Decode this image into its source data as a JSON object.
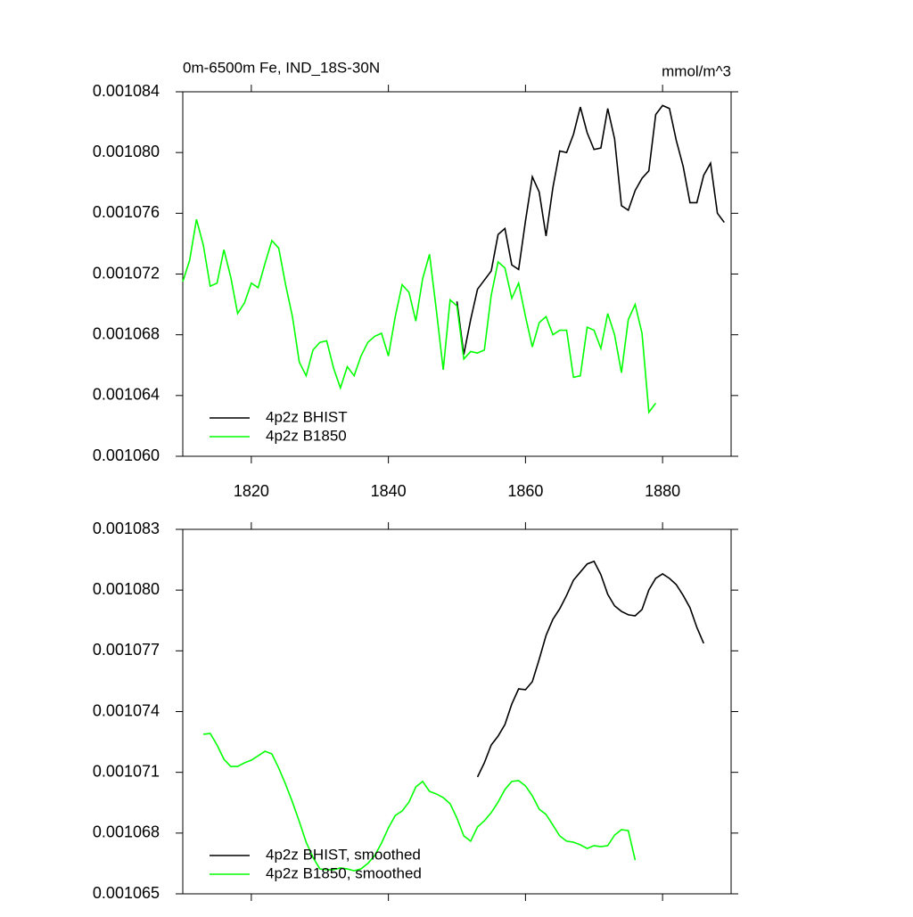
{
  "chart_data": [
    {
      "type": "line",
      "title": "0m-6500m Fe, IND_18S-30N",
      "right_title": "mmol/m^3",
      "xlim": [
        1810,
        1890
      ],
      "xticks": [
        1820,
        1840,
        1860,
        1880
      ],
      "ylim": [
        0.00106,
        0.001084
      ],
      "yticks": [
        {
          "value": 0.00106,
          "label": "0.001060"
        },
        0.001064,
        0.001068,
        0.001072,
        0.001076,
        {
          "value": 0.00108,
          "label": "0.001080"
        },
        0.001084
      ],
      "legend": "lower left",
      "series": [
        {
          "name": "4p2z BHIST",
          "color": "#000000",
          "x": [
            1850,
            1851,
            1852,
            1853,
            1854,
            1855,
            1856,
            1857,
            1858,
            1859,
            1860,
            1861,
            1862,
            1863,
            1864,
            1865,
            1866,
            1867,
            1868,
            1869,
            1870,
            1871,
            1872,
            1873,
            1874,
            1875,
            1876,
            1877,
            1878,
            1879,
            1880,
            1881,
            1882,
            1883,
            1884,
            1885,
            1886,
            1887,
            1888,
            1889
          ],
          "values": [
            0.0010702,
            0.0010667,
            0.001069,
            0.001071,
            0.0010716,
            0.0010722,
            0.0010746,
            0.001075,
            0.0010726,
            0.0010723,
            0.0010755,
            0.0010784,
            0.0010774,
            0.0010745,
            0.0010777,
            0.0010801,
            0.00108,
            0.0010812,
            0.001083,
            0.0010813,
            0.0010802,
            0.0010803,
            0.0010829,
            0.0010809,
            0.0010765,
            0.0010762,
            0.0010775,
            0.0010783,
            0.0010788,
            0.0010825,
            0.0010831,
            0.0010829,
            0.0010808,
            0.0010791,
            0.0010767,
            0.0010767,
            0.0010785,
            0.0010793,
            0.001076,
            0.0010754
          ]
        },
        {
          "name": "4p2z B1850",
          "color": "#00ff00",
          "x": [
            1810,
            1811,
            1812,
            1813,
            1814,
            1815,
            1816,
            1817,
            1818,
            1819,
            1820,
            1821,
            1822,
            1823,
            1824,
            1825,
            1826,
            1827,
            1828,
            1829,
            1830,
            1831,
            1832,
            1833,
            1834,
            1835,
            1836,
            1837,
            1838,
            1839,
            1840,
            1841,
            1842,
            1843,
            1844,
            1845,
            1846,
            1847,
            1848,
            1849,
            1850,
            1851,
            1852,
            1853,
            1854,
            1855,
            1856,
            1857,
            1858,
            1859,
            1860,
            1861,
            1862,
            1863,
            1864,
            1865,
            1866,
            1867,
            1868,
            1869,
            1870,
            1871,
            1872,
            1873,
            1874,
            1875,
            1876,
            1877,
            1878,
            1879
          ],
          "values": [
            0.0010715,
            0.0010729,
            0.0010756,
            0.0010739,
            0.0010712,
            0.0010714,
            0.0010736,
            0.0010718,
            0.0010694,
            0.0010701,
            0.0010714,
            0.0010711,
            0.0010727,
            0.0010742,
            0.0010737,
            0.0010713,
            0.0010692,
            0.0010662,
            0.0010653,
            0.001067,
            0.0010675,
            0.0010676,
            0.0010658,
            0.0010645,
            0.0010659,
            0.0010653,
            0.0010666,
            0.0010675,
            0.0010679,
            0.0010681,
            0.0010666,
            0.0010692,
            0.0010713,
            0.0010708,
            0.0010689,
            0.0010717,
            0.0010733,
            0.0010696,
            0.0010657,
            0.0010703,
            0.0010699,
            0.0010664,
            0.0010669,
            0.0010668,
            0.001067,
            0.0010706,
            0.0010728,
            0.0010724,
            0.0010704,
            0.0010714,
            0.0010692,
            0.0010672,
            0.0010688,
            0.0010692,
            0.001068,
            0.0010683,
            0.0010683,
            0.0010652,
            0.0010653,
            0.0010685,
            0.0010683,
            0.0010671,
            0.0010694,
            0.001068,
            0.0010655,
            0.001069,
            0.00107,
            0.0010681,
            0.0010629,
            0.0010635
          ]
        }
      ]
    },
    {
      "type": "line",
      "xlim": [
        1810,
        1890
      ],
      "xticks": [
        1820,
        1840,
        1860,
        1880
      ],
      "show_xtick_labels": false,
      "ylim": [
        0.001065,
        0.001083
      ],
      "yticks": [
        0.001065,
        0.001068,
        0.001071,
        0.001074,
        0.001077,
        {
          "value": 0.00108,
          "label": "0.001080"
        },
        0.001083
      ],
      "legend": "lower left",
      "series": [
        {
          "name": "4p2z BHIST, smoothed",
          "color": "#000000",
          "x": [
            1853,
            1854,
            1855,
            1856,
            1857,
            1858,
            1859,
            1860,
            1861,
            1862,
            1863,
            1864,
            1865,
            1866,
            1867,
            1868,
            1869,
            1870,
            1871,
            1872,
            1873,
            1874,
            1875,
            1876,
            1877,
            1878,
            1879,
            1880,
            1881,
            1882,
            1883,
            1884,
            1885,
            1886
          ],
          "values": [
            0.00107077,
            0.00107147,
            0.00107235,
            0.00107279,
            0.00107336,
            0.00107437,
            0.00107512,
            0.00107508,
            0.00107548,
            0.00107658,
            0.00107776,
            0.00107856,
            0.00107908,
            0.00107974,
            0.00108049,
            0.00108089,
            0.00108129,
            0.00108142,
            0.00108076,
            0.00107979,
            0.00107922,
            0.00107895,
            0.00107878,
            0.00107873,
            0.00107904,
            0.00108001,
            0.00108058,
            0.0010808,
            0.00108058,
            0.00108027,
            0.00107974,
            0.00107913,
            0.00107816,
            0.00107737
          ]
        },
        {
          "name": "4p2z B1850, smoothed",
          "color": "#00ff00",
          "x": [
            1813,
            1814,
            1815,
            1816,
            1817,
            1818,
            1819,
            1820,
            1821,
            1822,
            1823,
            1824,
            1825,
            1826,
            1827,
            1828,
            1829,
            1830,
            1831,
            1832,
            1833,
            1834,
            1835,
            1836,
            1837,
            1838,
            1839,
            1840,
            1841,
            1842,
            1843,
            1844,
            1845,
            1846,
            1847,
            1848,
            1849,
            1850,
            1851,
            1852,
            1853,
            1854,
            1855,
            1856,
            1857,
            1858,
            1859,
            1860,
            1861,
            1862,
            1863,
            1864,
            1865,
            1866,
            1867,
            1868,
            1869,
            1870,
            1871,
            1872,
            1873,
            1874,
            1875,
            1876
          ],
          "values": [
            0.00107288,
            0.00107292,
            0.00107235,
            0.00107165,
            0.00107129,
            0.00107129,
            0.00107147,
            0.0010716,
            0.00107182,
            0.00107204,
            0.00107191,
            0.00107121,
            0.00107041,
            0.00106953,
            0.00106857,
            0.00106755,
            0.0010668,
            0.00106623,
            0.00106619,
            0.00106619,
            0.00106628,
            0.00106623,
            0.00106614,
            0.00106623,
            0.0010665,
            0.00106689,
            0.00106751,
            0.00106826,
            0.00106887,
            0.00106909,
            0.00106953,
            0.00107028,
            0.00107055,
            0.00107006,
            0.00106993,
            0.00106975,
            0.00106945,
            0.00106874,
            0.00106786,
            0.0010676,
            0.0010683,
            0.00106861,
            0.00106901,
            0.00106953,
            0.00107015,
            0.00107055,
            0.00107059,
            0.00107033,
            0.00106984,
            0.00106918,
            0.00106892,
            0.00106839,
            0.00106786,
            0.0010676,
            0.00106755,
            0.00106742,
            0.00106724,
            0.00106738,
            0.00106733,
            0.00106738,
            0.0010679,
            0.00106817,
            0.00106812,
            0.00106667
          ]
        }
      ]
    }
  ]
}
